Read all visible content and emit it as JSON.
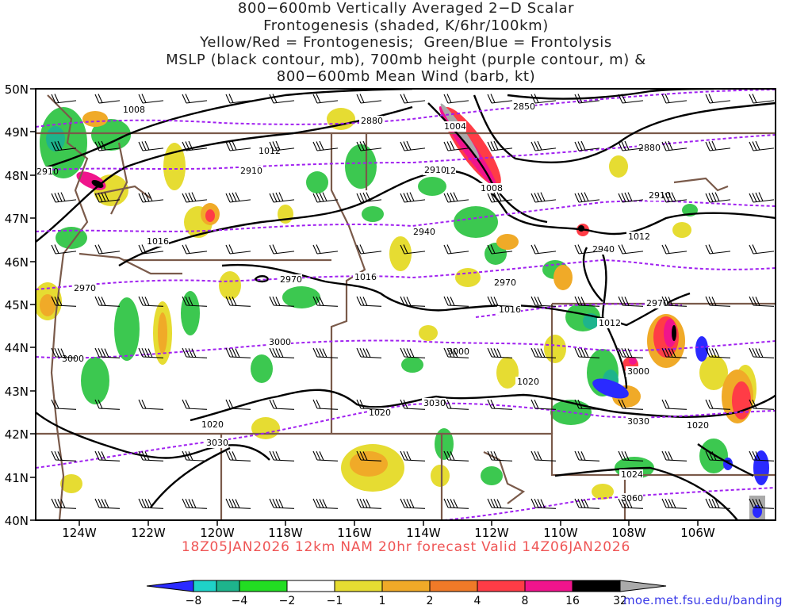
{
  "title_lines": [
    "800−600mb Vertically Averaged 2−D Scalar",
    "Frontogenesis (shaded, K/6hr/100km)",
    "Yellow/Red = Frontogenesis;  Green/Blue = Frontolysis",
    "MSLP (black contour, mb), 700mb height (purple contour, m) &",
    "800−600mb Mean Wind (barb, kt)"
  ],
  "footer": "18Z05JAN2026  12km  NAM  20hr  forecast  Valid  14Z06JAN2026",
  "credit": "moe.met.fsu.edu/banding",
  "lat_labels": [
    "50N",
    "49N",
    "48N",
    "47N",
    "46N",
    "45N",
    "44N",
    "43N",
    "42N",
    "41N",
    "40N"
  ],
  "lon_labels": [
    "124W",
    "122W",
    "120W",
    "118W",
    "116W",
    "114W",
    "112W",
    "110W",
    "108W",
    "106W"
  ],
  "colorbar": {
    "tick_labels": [
      "−8",
      "−4",
      "−2",
      "−1",
      "1",
      "2",
      "4",
      "8",
      "16",
      "32"
    ],
    "colors": [
      "#2a2aff",
      "#1fd2c8",
      "#1eb48c",
      "#3cc850",
      "#22dd22",
      "#ffffff",
      "#e6dc32",
      "#f0aa28",
      "#f07a28",
      "#ff3c46",
      "#f0148c",
      "#000000",
      "#aaaaaa"
    ]
  },
  "mslp_labels": [
    "1008",
    "1004",
    "1008",
    "1012",
    "1012",
    "1016",
    "1016",
    "1016",
    "1012",
    "1012",
    "1020",
    "1020",
    "1020",
    "1020",
    "1024"
  ],
  "height_labels": [
    "2880",
    "2850",
    "2880",
    "2910",
    "2910",
    "2910",
    "2940",
    "2940",
    "2970",
    "2970",
    "2970",
    "2970",
    "3000",
    "3000",
    "3000",
    "3000",
    "3030",
    "3030",
    "3030",
    "3060",
    "2910"
  ]
}
